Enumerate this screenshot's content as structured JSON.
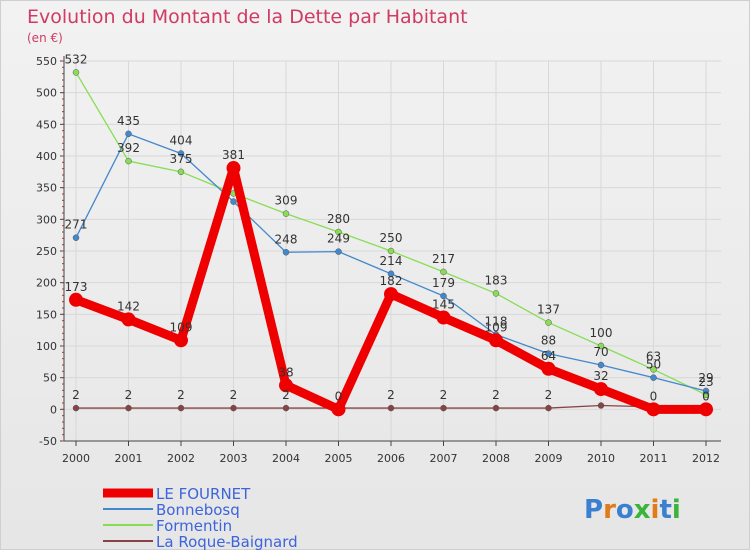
{
  "chart_data": {
    "type": "line",
    "title": "Evolution du Montant de la Dette par Habitant",
    "subtitle": "(en €)",
    "xlabel": "",
    "ylabel": "",
    "ylim": [
      -50,
      550
    ],
    "yticks": [
      -50,
      0,
      50,
      100,
      150,
      200,
      250,
      300,
      350,
      400,
      450,
      500,
      550
    ],
    "categories": [
      "2000",
      "2001",
      "2002",
      "2003",
      "2004",
      "2005",
      "2006",
      "2007",
      "2008",
      "2009",
      "2010",
      "2011",
      "2012"
    ],
    "series": [
      {
        "name": "Formentin",
        "color": "#88dd55",
        "values": [
          532,
          392,
          375,
          341,
          309,
          280,
          250,
          217,
          183,
          137,
          100,
          63,
          23
        ],
        "labels": [
          "532",
          "392",
          "375",
          "",
          "309",
          "280",
          "250",
          "217",
          "183",
          "137",
          "100",
          "63",
          "23"
        ]
      },
      {
        "name": "Bonnebosq",
        "color": "#4488cc",
        "values": [
          271,
          435,
          404,
          328,
          248,
          249,
          214,
          179,
          118,
          88,
          70,
          50,
          29
        ],
        "labels": [
          "271",
          "435",
          "404",
          "",
          "248",
          "249",
          "214",
          "179",
          "118",
          "88",
          "70",
          "50",
          "29"
        ]
      },
      {
        "name": "La Roque-Baignard",
        "color": "#884444",
        "values": [
          2,
          2,
          2,
          2,
          2,
          2,
          2,
          2,
          2,
          2,
          6,
          4,
          4
        ],
        "labels": [
          "2",
          "2",
          "2",
          "2",
          "2",
          "",
          "2",
          "2",
          "2",
          "2",
          "",
          "",
          ""
        ]
      },
      {
        "name": "LE FOURNET",
        "color": "#ee0000",
        "values": [
          173,
          142,
          109,
          381,
          38,
          0,
          182,
          145,
          109,
          64,
          32,
          0,
          0
        ],
        "labels": [
          "173",
          "142",
          "109",
          "381",
          "38",
          "0",
          "182",
          "145",
          "109",
          "64",
          "32",
          "0",
          "0"
        ]
      }
    ],
    "legend": [
      "LE FOURNET",
      "Bonnebosq",
      "Formentin",
      "La Roque-Baignard"
    ],
    "legend_position": "bottom-left"
  },
  "branding": {
    "logo_text": "Proxiti"
  }
}
